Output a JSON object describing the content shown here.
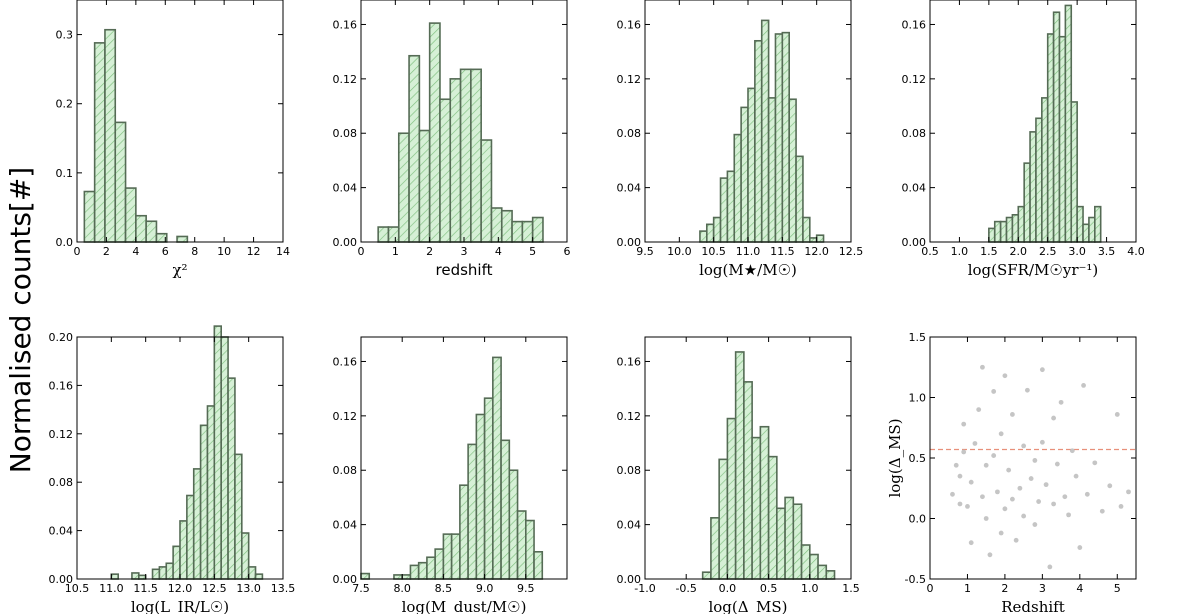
{
  "figure": {
    "shared_ylabel": "Normalised counts[#]",
    "hist_face_color": "#d6f0d6",
    "hist_edge_color": "#556b55",
    "hatch_color": "#7fbf7f",
    "scatter_color": "#bbbbbb",
    "threshold_color": "#e8907a"
  },
  "chart_data": [
    {
      "type": "bar",
      "title": "",
      "xlabel": "χ²",
      "xlim": [
        0,
        14
      ],
      "ylim": [
        0,
        0.35
      ],
      "xticks": [
        "0",
        "2",
        "4",
        "6",
        "8",
        "10",
        "12",
        "14"
      ],
      "yticks": [
        "0.0",
        "0.1",
        "0.2",
        "0.3"
      ],
      "bin_edges": [
        0.5,
        1.2,
        1.9,
        2.6,
        3.3,
        4.0,
        4.7,
        5.4,
        6.1,
        6.8,
        7.5
      ],
      "values": [
        0.073,
        0.288,
        0.307,
        0.173,
        0.078,
        0.038,
        0.03,
        0.012,
        0.0,
        0.008
      ]
    },
    {
      "type": "bar",
      "title": "",
      "xlabel": "redshift",
      "xlim": [
        0,
        6
      ],
      "ylim": [
        0,
        0.178
      ],
      "xticks": [
        "0",
        "1",
        "2",
        "3",
        "4",
        "5",
        "6"
      ],
      "yticks": [
        "0.00",
        "0.04",
        "0.08",
        "0.12",
        "0.16"
      ],
      "bin_edges": [
        0.5,
        0.8,
        1.1,
        1.4,
        1.7,
        2.0,
        2.3,
        2.6,
        2.9,
        3.2,
        3.5,
        3.8,
        4.1,
        4.4,
        4.7,
        5.0,
        5.3
      ],
      "values": [
        0.011,
        0.011,
        0.08,
        0.137,
        0.082,
        0.161,
        0.105,
        0.12,
        0.127,
        0.127,
        0.075,
        0.025,
        0.023,
        0.015,
        0.015,
        0.018
      ]
    },
    {
      "type": "bar",
      "title": "",
      "xlabel": "log(M★/M☉)",
      "xlim": [
        9.5,
        12.5
      ],
      "ylim": [
        0,
        0.178
      ],
      "xticks": [
        "9.5",
        "10.0",
        "10.5",
        "11.0",
        "11.5",
        "12.0",
        "12.5"
      ],
      "yticks": [
        "0.00",
        "0.04",
        "0.08",
        "0.12",
        "0.16"
      ],
      "bin_edges": [
        10.3,
        10.4,
        10.5,
        10.6,
        10.7,
        10.8,
        10.9,
        11.0,
        11.1,
        11.2,
        11.3,
        11.4,
        11.5,
        11.6,
        11.7,
        11.8,
        11.9,
        12.0,
        12.1
      ],
      "values": [
        0.008,
        0.013,
        0.018,
        0.047,
        0.052,
        0.079,
        0.099,
        0.113,
        0.148,
        0.163,
        0.106,
        0.153,
        0.154,
        0.105,
        0.063,
        0.018,
        0.003,
        0.005
      ]
    },
    {
      "type": "bar",
      "title": "",
      "xlabel": "log(SFR/M☉yr⁻¹)",
      "xlim": [
        0.5,
        4.0
      ],
      "ylim": [
        0,
        0.178
      ],
      "xticks": [
        "0.5",
        "1.0",
        "1.5",
        "2.0",
        "2.5",
        "3.0",
        "3.5",
        "4.0"
      ],
      "yticks": [
        "0.00",
        "0.04",
        "0.08",
        "0.12",
        "0.16"
      ],
      "bin_edges": [
        1.5,
        1.6,
        1.7,
        1.8,
        1.9,
        2.0,
        2.1,
        2.2,
        2.3,
        2.4,
        2.5,
        2.6,
        2.7,
        2.8,
        2.9,
        3.0,
        3.1,
        3.2,
        3.3,
        3.4
      ],
      "values": [
        0.01,
        0.015,
        0.015,
        0.018,
        0.02,
        0.026,
        0.058,
        0.081,
        0.091,
        0.106,
        0.153,
        0.169,
        0.151,
        0.174,
        0.103,
        0.026,
        0.013,
        0.018,
        0.026
      ]
    },
    {
      "type": "bar",
      "title": "",
      "xlabel": "log(L_IR/L☉)",
      "xlim": [
        10.5,
        13.5
      ],
      "ylim": [
        0,
        0.2
      ],
      "xticks": [
        "10.5",
        "11.0",
        "11.5",
        "12.0",
        "12.5",
        "13.0",
        "13.5"
      ],
      "yticks": [
        "0.00",
        "0.04",
        "0.08",
        "0.12",
        "0.16",
        "0.20"
      ],
      "bin_edges": [
        11.0,
        11.1,
        11.2,
        11.3,
        11.4,
        11.5,
        11.6,
        11.7,
        11.8,
        11.9,
        12.0,
        12.1,
        12.2,
        12.3,
        12.4,
        12.5,
        12.6,
        12.7,
        12.8,
        12.9,
        13.0,
        13.1,
        13.2
      ],
      "values": [
        0.004,
        0.0,
        0.0,
        0.005,
        0.003,
        0.0,
        0.008,
        0.01,
        0.013,
        0.027,
        0.048,
        0.069,
        0.091,
        0.127,
        0.143,
        0.209,
        0.2,
        0.166,
        0.103,
        0.038,
        0.01,
        0.004
      ]
    },
    {
      "type": "bar",
      "title": "",
      "xlabel": "log(M_dust/M☉)",
      "xlim": [
        7.5,
        10.0
      ],
      "ylim": [
        0,
        0.178
      ],
      "xticks": [
        "7.5",
        "8.0",
        "8.5",
        "9.0",
        "9.5"
      ],
      "yticks": [
        "0.00",
        "0.04",
        "0.08",
        "0.12",
        "0.16"
      ],
      "bin_edges": [
        7.5,
        7.6,
        7.7,
        7.8,
        7.9,
        8.0,
        8.1,
        8.2,
        8.3,
        8.4,
        8.5,
        8.6,
        8.7,
        8.8,
        8.9,
        9.0,
        9.1,
        9.2,
        9.3,
        9.4,
        9.5,
        9.6,
        9.7
      ],
      "values": [
        0.004,
        0.0,
        0.0,
        0.0,
        0.003,
        0.003,
        0.01,
        0.012,
        0.016,
        0.022,
        0.033,
        0.033,
        0.069,
        0.099,
        0.121,
        0.133,
        0.163,
        0.102,
        0.08,
        0.05,
        0.043,
        0.02
      ]
    },
    {
      "type": "bar",
      "title": "",
      "xlabel": "log(Δ_MS)",
      "xlim": [
        -1.0,
        1.5
      ],
      "ylim": [
        0,
        0.178
      ],
      "xticks": [
        "-1.0",
        "-0.5",
        "0.0",
        "0.5",
        "1.0",
        "1.5"
      ],
      "yticks": [
        "0.00",
        "0.04",
        "0.08",
        "0.12",
        "0.16"
      ],
      "bin_edges": [
        -0.3,
        -0.2,
        -0.1,
        0.0,
        0.1,
        0.2,
        0.3,
        0.4,
        0.5,
        0.6,
        0.7,
        0.8,
        0.9,
        1.0,
        1.1,
        1.2,
        1.3
      ],
      "values": [
        0.005,
        0.045,
        0.088,
        0.118,
        0.167,
        0.145,
        0.104,
        0.112,
        0.09,
        0.052,
        0.06,
        0.055,
        0.025,
        0.018,
        0.01,
        0.006
      ]
    },
    {
      "type": "scatter",
      "title": "",
      "xlabel": "Redshift",
      "ylabel": "log(Δ_MS)",
      "xlim": [
        0,
        5.5
      ],
      "ylim": [
        -0.5,
        1.5
      ],
      "xticks": [
        "0",
        "1",
        "2",
        "3",
        "4",
        "5"
      ],
      "yticks": [
        "-0.5",
        "0.0",
        "0.5",
        "1.0",
        "1.5"
      ],
      "threshold_y": 0.57,
      "x": [
        0.6,
        0.7,
        0.8,
        0.8,
        0.9,
        0.9,
        1.0,
        1.1,
        1.1,
        1.2,
        1.3,
        1.4,
        1.4,
        1.5,
        1.5,
        1.6,
        1.7,
        1.7,
        1.8,
        1.9,
        1.9,
        2.0,
        2.0,
        2.1,
        2.2,
        2.2,
        2.3,
        2.4,
        2.5,
        2.5,
        2.6,
        2.7,
        2.8,
        2.8,
        2.9,
        3.0,
        3.0,
        3.1,
        3.2,
        3.3,
        3.3,
        3.4,
        3.5,
        3.6,
        3.7,
        3.8,
        3.9,
        4.0,
        4.1,
        4.2,
        4.4,
        4.6,
        4.8,
        5.0,
        5.1,
        5.3
      ],
      "y": [
        0.2,
        0.44,
        0.12,
        0.35,
        0.78,
        0.55,
        0.1,
        -0.2,
        0.3,
        0.62,
        0.9,
        1.25,
        0.18,
        0.0,
        0.44,
        -0.3,
        0.52,
        1.05,
        0.22,
        -0.12,
        0.7,
        0.08,
        1.18,
        0.4,
        0.16,
        0.86,
        -0.18,
        0.25,
        0.6,
        0.02,
        1.06,
        0.33,
        -0.05,
        0.48,
        0.14,
        1.23,
        0.63,
        0.28,
        -0.4,
        0.83,
        0.12,
        0.45,
        0.96,
        0.18,
        0.03,
        0.56,
        0.35,
        -0.24,
        1.1,
        0.2,
        0.46,
        0.06,
        0.27,
        0.86,
        0.1,
        0.22
      ]
    }
  ]
}
